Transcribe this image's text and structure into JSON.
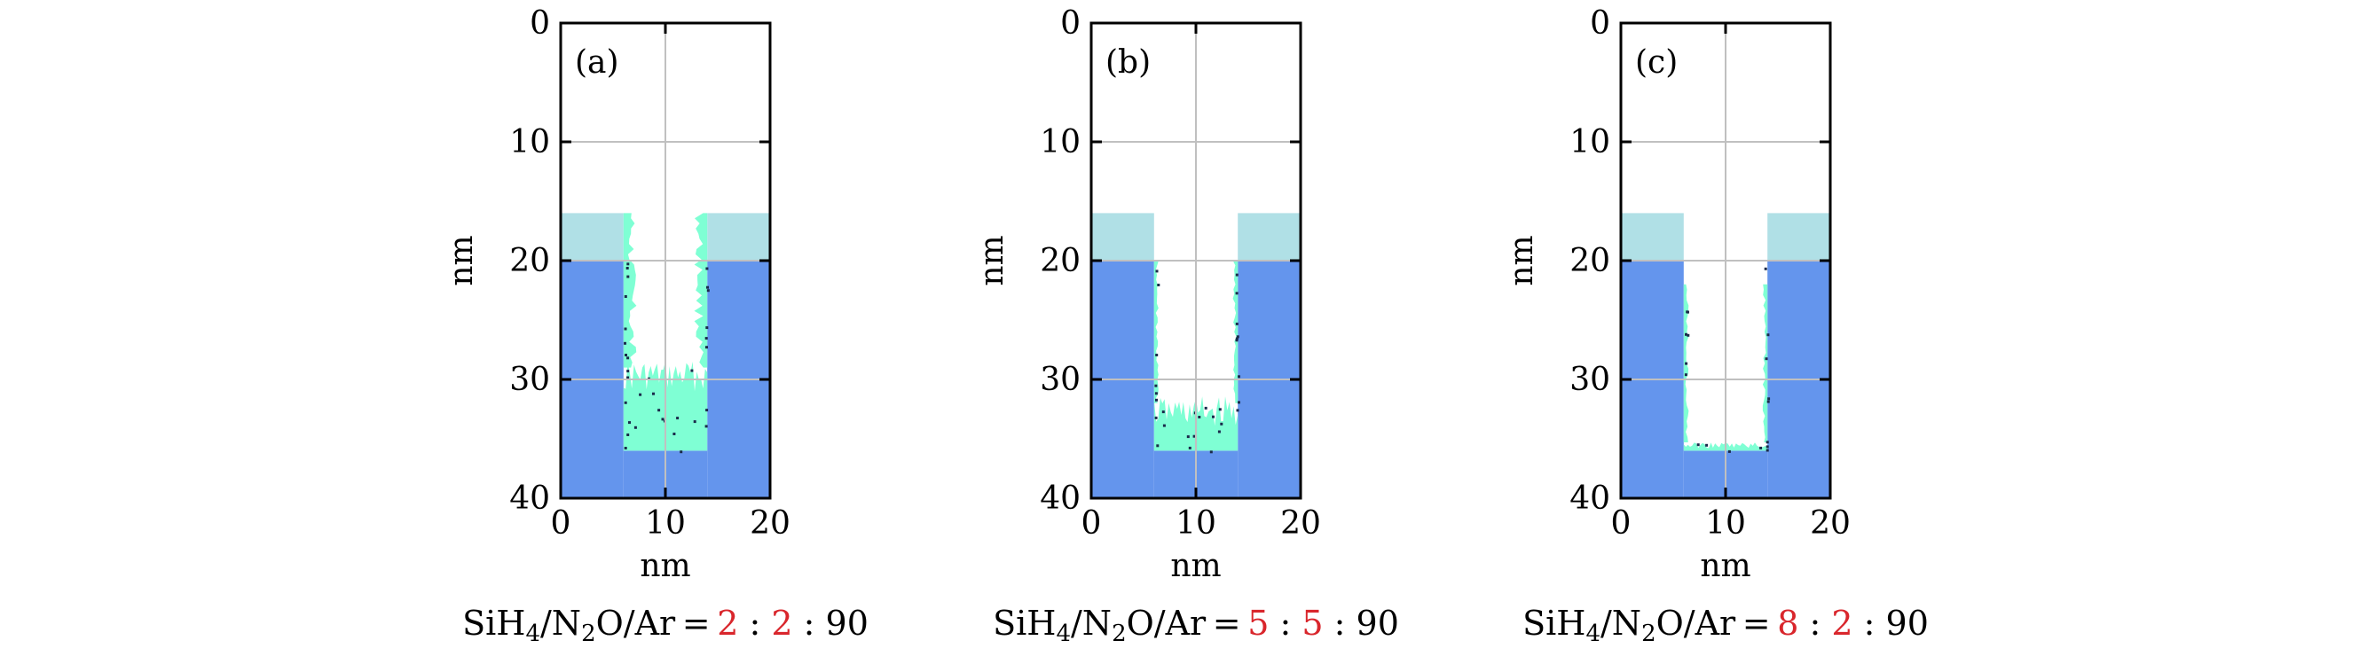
{
  "colors": {
    "substrate": "#6495ed",
    "mask": "#b0e0e6",
    "deposit": "#7fffd4",
    "grid": "#c0c0c0",
    "particle": "#1a2a4a",
    "ratio_highlight": "#d9262c"
  },
  "chart_data": [
    {
      "type": "profile",
      "panel": "(a)",
      "xlabel": "nm",
      "ylabel": "nm",
      "xlim": [
        0,
        20
      ],
      "ylim": [
        40,
        0
      ],
      "xticks": [
        "0",
        "10",
        "20"
      ],
      "yticks": [
        "0",
        "10",
        "20",
        "30",
        "40"
      ],
      "grid": true,
      "mask_layer": {
        "y_top": 16,
        "y_bottom": 20
      },
      "substrate_top": 20,
      "trench": {
        "x_left": 6,
        "x_right": 14,
        "bottom": 36
      },
      "deposit_fill_top": 29,
      "sidewall_deposit_top": 16,
      "caption": {
        "prefix": "SiH",
        "sub1": "4",
        "mid": "/N",
        "sub2": "2",
        "suffix": "O/Ar = ",
        "r1": "2",
        "sep": " : ",
        "r2": "2",
        "r3": "90"
      }
    },
    {
      "type": "profile",
      "panel": "(b)",
      "xlabel": "nm",
      "ylabel": "nm",
      "xlim": [
        0,
        20
      ],
      "ylim": [
        40,
        0
      ],
      "xticks": [
        "0",
        "10",
        "20"
      ],
      "yticks": [
        "0",
        "10",
        "20",
        "30",
        "40"
      ],
      "grid": true,
      "mask_layer": {
        "y_top": 16,
        "y_bottom": 20
      },
      "substrate_top": 20,
      "trench": {
        "x_left": 6,
        "x_right": 14,
        "bottom": 36
      },
      "deposit_fill_top": 32,
      "sidewall_deposit_top": 20,
      "caption": {
        "prefix": "SiH",
        "sub1": "4",
        "mid": "/N",
        "sub2": "2",
        "suffix": "O/Ar = ",
        "r1": "5",
        "sep": " : ",
        "r2": "5",
        "r3": "90"
      }
    },
    {
      "type": "profile",
      "panel": "(c)",
      "xlabel": "nm",
      "ylabel": "nm",
      "xlim": [
        0,
        20
      ],
      "ylim": [
        40,
        0
      ],
      "xticks": [
        "0",
        "10",
        "20"
      ],
      "yticks": [
        "0",
        "10",
        "20",
        "30",
        "40"
      ],
      "grid": true,
      "mask_layer": {
        "y_top": 16,
        "y_bottom": 20
      },
      "substrate_top": 20,
      "trench": {
        "x_left": 6,
        "x_right": 14,
        "bottom": 36
      },
      "deposit_fill_top": 35.3,
      "sidewall_deposit_top": 22,
      "caption": {
        "prefix": "SiH",
        "sub1": "4",
        "mid": "/N",
        "sub2": "2",
        "suffix": "O/Ar = ",
        "r1": "8",
        "sep": " : ",
        "r2": "2",
        "r3": "90"
      }
    }
  ]
}
